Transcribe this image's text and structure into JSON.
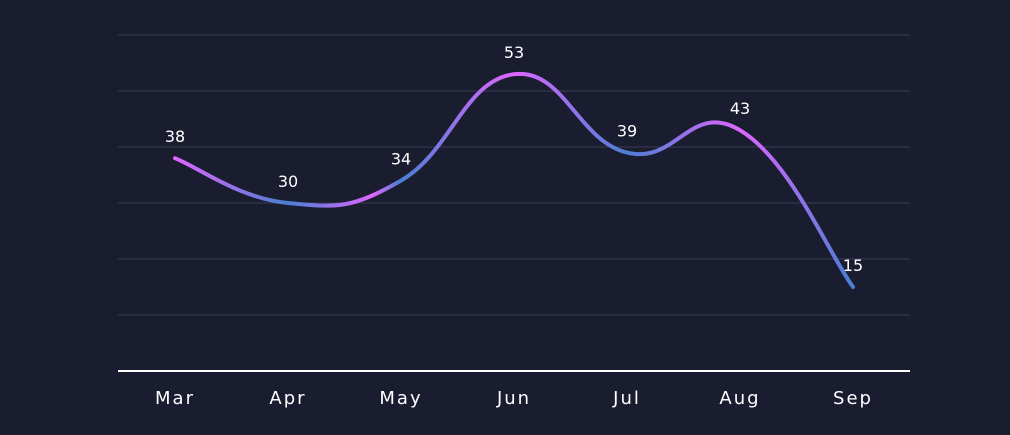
{
  "chart_data": {
    "type": "line",
    "title": "",
    "xlabel": "",
    "ylabel": "",
    "categories": [
      "Mar",
      "Apr",
      "May",
      "Jun",
      "Jul",
      "Aug",
      "Sep"
    ],
    "series": [
      {
        "values": [
          38,
          30,
          34,
          53,
          39,
          43,
          15
        ]
      }
    ],
    "ylim": [
      0,
      60
    ],
    "grid": true,
    "smooth": true,
    "data_labels": true,
    "colors": {
      "background": "#1a1c30",
      "grid": "#3a3d55",
      "baseline": "#ffffff",
      "text": "#ffffff",
      "line_peak": "#e066ff",
      "line_trough": "#4a7fd4"
    }
  }
}
